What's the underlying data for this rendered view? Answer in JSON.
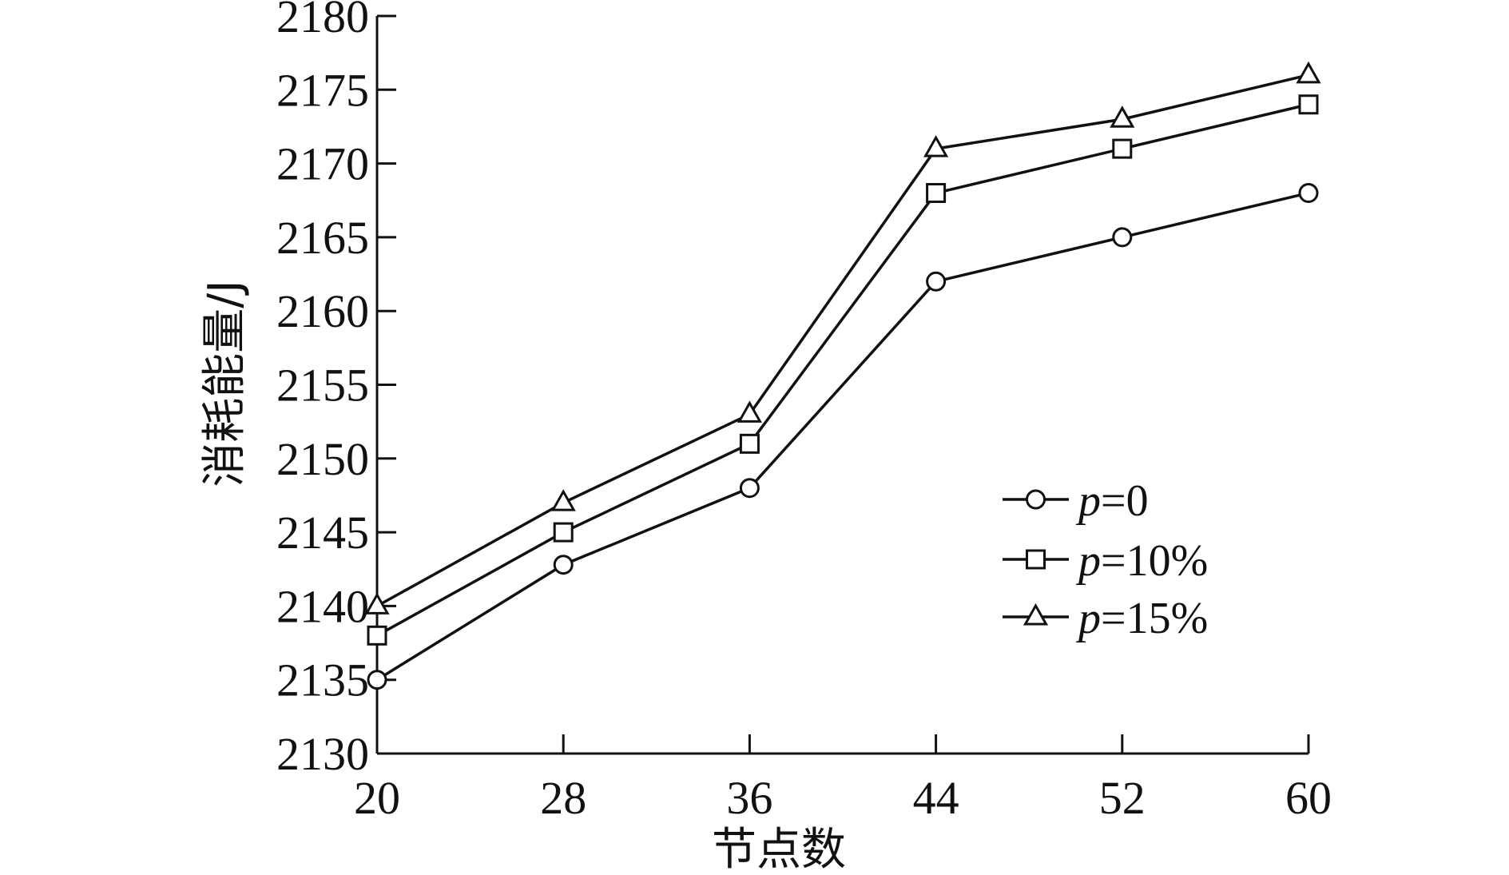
{
  "chart_data": {
    "type": "line",
    "xlabel": "节点数",
    "ylabel": "消耗能量/J",
    "x": [
      20,
      28,
      36,
      44,
      52,
      60
    ],
    "xticks": [
      "20",
      "28",
      "36",
      "44",
      "52",
      "60"
    ],
    "xlim": [
      20,
      60
    ],
    "ylim": [
      2130,
      2180
    ],
    "yticks": [
      "2130",
      "2135",
      "2140",
      "2145",
      "2150",
      "2155",
      "2160",
      "2165",
      "2170",
      "2175",
      "2180"
    ],
    "grid": false,
    "legend_position": "right, lower-middle",
    "series": [
      {
        "name": "p=0",
        "name_var": "p",
        "name_value": "=0",
        "marker": "circle",
        "values": [
          2135,
          2142.8,
          2148,
          2162,
          2165,
          2168
        ]
      },
      {
        "name": "p=10%",
        "name_var": "p",
        "name_value": "=10%",
        "marker": "square",
        "values": [
          2138,
          2145,
          2151,
          2168,
          2171,
          2174
        ]
      },
      {
        "name": "p=15%",
        "name_var": "p",
        "name_value": "=15%",
        "marker": "triangle",
        "values": [
          2140,
          2147,
          2153,
          2171,
          2173,
          2176
        ]
      }
    ]
  }
}
